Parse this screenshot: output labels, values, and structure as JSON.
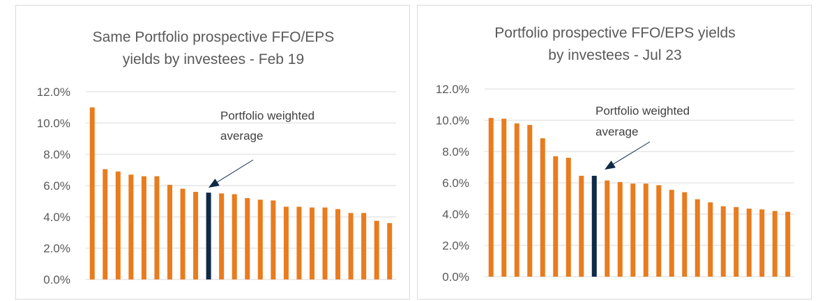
{
  "colors": {
    "bar": "#E87C1E",
    "highlight": "#0F2A47",
    "grid": "#D9D9D9",
    "text": "#595959"
  },
  "chart_data": [
    {
      "type": "bar",
      "title_lines": [
        "Same Portfolio prospective FFO/EPS",
        "yields by investees - Feb 19"
      ],
      "ylim": [
        0,
        12
      ],
      "yticks": [
        0,
        2,
        4,
        6,
        8,
        10,
        12
      ],
      "ytick_labels": [
        "0.0%",
        "2.0%",
        "4.0%",
        "6.0%",
        "8.0%",
        "10.0%",
        "12.0%"
      ],
      "values": [
        11.0,
        7.05,
        6.9,
        6.7,
        6.6,
        6.6,
        6.05,
        5.8,
        5.6,
        5.55,
        5.5,
        5.45,
        5.2,
        5.1,
        5.05,
        4.65,
        4.65,
        4.6,
        4.6,
        4.5,
        4.25,
        4.25,
        3.75,
        3.6
      ],
      "highlight_index": 9,
      "annotation_lines": [
        "Portfolio weighted",
        "average"
      ]
    },
    {
      "type": "bar",
      "title_lines": [
        "Portfolio prospective FFO/EPS yields",
        "by investees - Jul 23"
      ],
      "ylim": [
        0,
        12
      ],
      "yticks": [
        0,
        2,
        4,
        6,
        8,
        10,
        12
      ],
      "ytick_labels": [
        "0.0%",
        "2.0%",
        "4.0%",
        "6.0%",
        "8.0%",
        "10.0%",
        "12.0%"
      ],
      "values": [
        10.15,
        10.1,
        9.8,
        9.7,
        8.85,
        7.7,
        7.6,
        6.45,
        6.45,
        6.15,
        6.05,
        5.95,
        5.95,
        5.85,
        5.55,
        5.4,
        4.95,
        4.75,
        4.5,
        4.45,
        4.35,
        4.3,
        4.2,
        4.15
      ],
      "highlight_index": 8,
      "annotation_lines": [
        "Portfolio weighted",
        "average"
      ]
    }
  ]
}
